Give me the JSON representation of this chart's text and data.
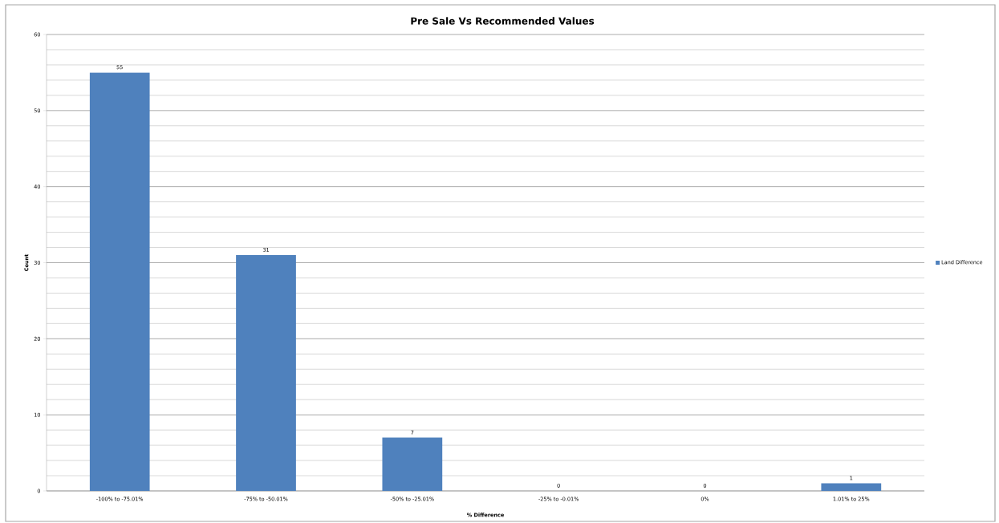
{
  "chart_data": {
    "type": "bar",
    "title": "Pre Sale Vs Recommended Values",
    "xlabel": "% Difference",
    "ylabel": "Count",
    "categories": [
      "-100% to -75.01%",
      "-75% to -50.01%",
      "-50% to -25.01%",
      "-25% to -0.01%",
      "0%",
      "1.01% to 25%"
    ],
    "series": [
      {
        "name": "Land Difference",
        "color": "#4f81bd",
        "values": [
          55,
          31,
          7,
          0,
          0,
          1
        ],
        "value_labels": [
          "55",
          "31",
          "7",
          "0",
          "0",
          "1"
        ]
      }
    ],
    "ylim": [
      0,
      60
    ],
    "yticks": [
      0,
      10,
      20,
      30,
      40,
      50,
      60
    ],
    "grid": "y",
    "legend": "right",
    "data_labels": true
  }
}
